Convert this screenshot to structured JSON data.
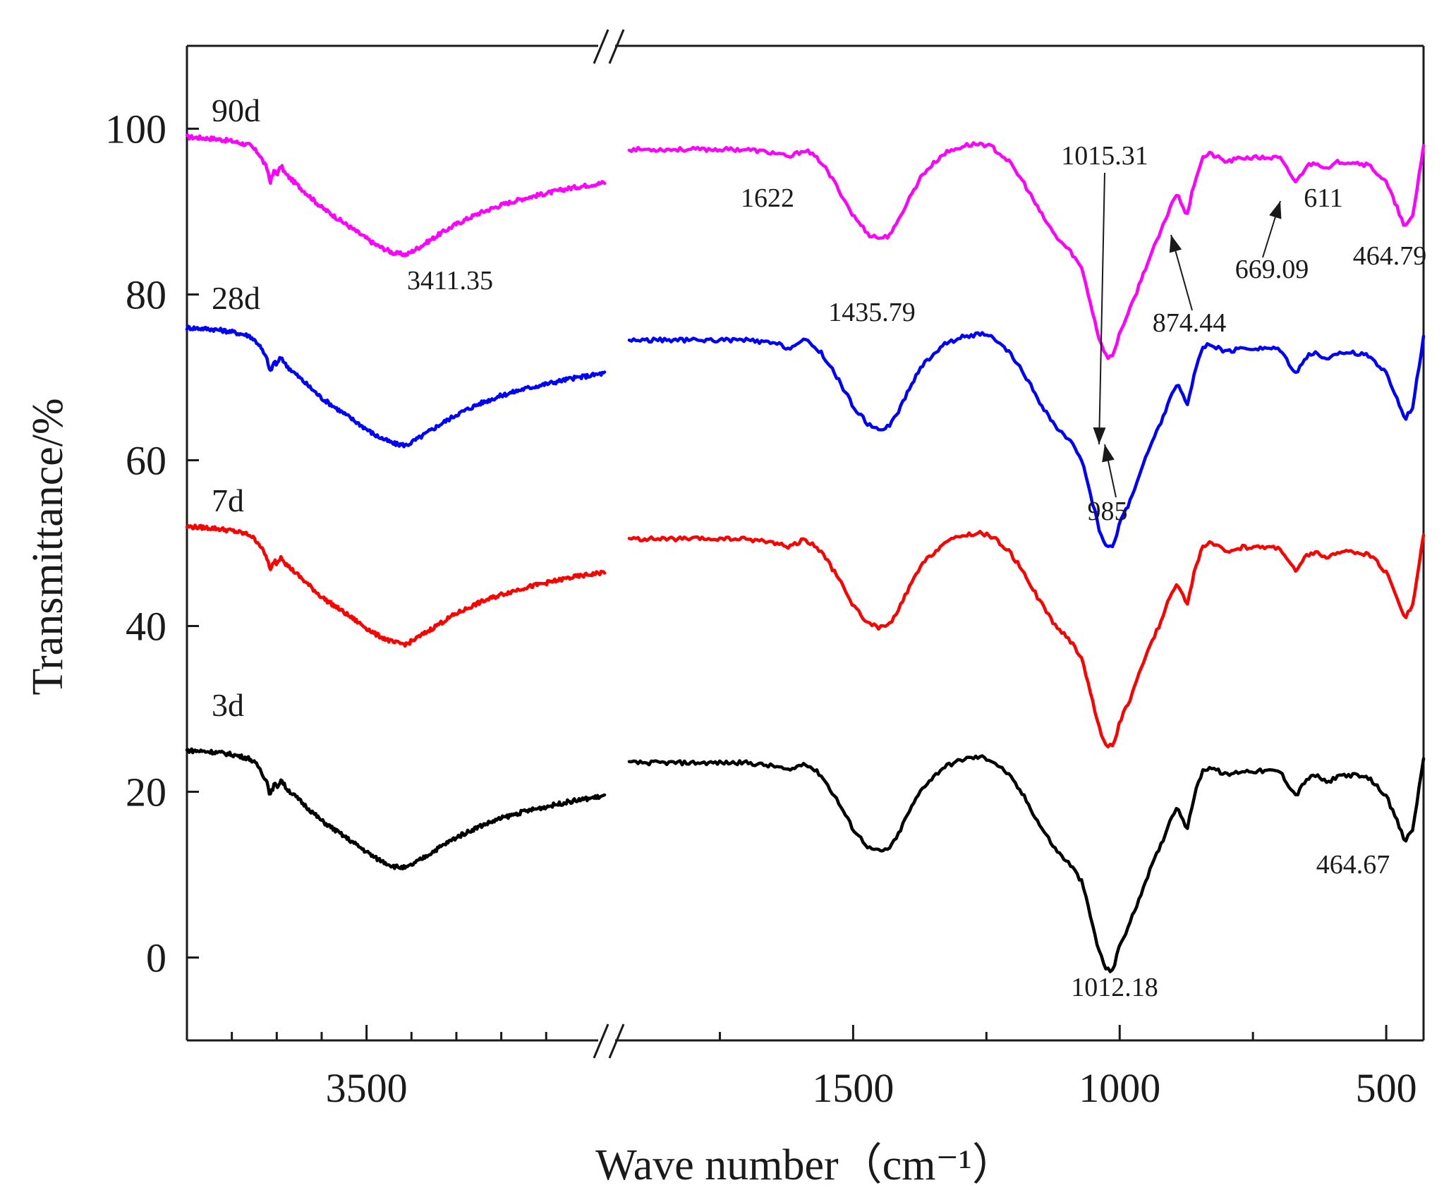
{
  "chart_data": {
    "type": "line",
    "xlabel": "Wave number（cm⁻¹）",
    "ylabel": "Transmittance/%",
    "ylim": [
      -10,
      110
    ],
    "yticks": [
      "0",
      "20",
      "40",
      "60",
      "80",
      "100"
    ],
    "ytick_values": [
      0,
      20,
      40,
      60,
      80,
      100
    ],
    "x_segments": [
      {
        "xlim": [
          3900,
          2970
        ],
        "ticks": [
          "3500"
        ],
        "tick_values": [
          3500
        ],
        "minor_ticks": [
          3800,
          3700,
          3600,
          3400,
          3300,
          3200,
          3100
        ]
      },
      {
        "xlim": [
          1920,
          430
        ],
        "ticks": [
          "1500",
          "1000",
          "500"
        ],
        "tick_values": [
          1500,
          1000,
          500
        ],
        "minor_ticks": [
          1750,
          1250,
          750
        ]
      }
    ],
    "colors": {
      "90d": "#ff00ff",
      "28d": "#0000ff",
      "7d": "#ff0000",
      "3d": "#000000"
    },
    "series": [
      {
        "name": "90d",
        "label": "90d",
        "offset": 73,
        "color": "#ff00ff"
      },
      {
        "name": "28d",
        "label": "28d",
        "offset": 50,
        "color": "#0000ff"
      },
      {
        "name": "7d",
        "label": "7d",
        "offset": 26,
        "color": "#ff0000"
      },
      {
        "name": "3d",
        "label": "3d",
        "offset": -1,
        "color": "#000000"
      }
    ],
    "segment1_shape": {
      "x": [
        3900,
        3840,
        3800,
        3760,
        3740,
        3720,
        3715,
        3705,
        3700,
        3690,
        3680,
        3660,
        3640,
        3620,
        3600,
        3560,
        3520,
        3480,
        3440,
        3411,
        3380,
        3340,
        3300,
        3250,
        3200,
        3150,
        3100,
        3050,
        2970
      ],
      "y": [
        26,
        25.8,
        25.5,
        25,
        24,
        22,
        20.5,
        22,
        21.5,
        22.5,
        21.5,
        20.5,
        19.5,
        18.5,
        17.5,
        16,
        14.5,
        13,
        12,
        11.8,
        12.8,
        14.2,
        15.5,
        16.8,
        17.8,
        18.6,
        19.2,
        19.8,
        20.5
      ]
    },
    "segment2_shape": {
      "x": [
        1920,
        1800,
        1700,
        1640,
        1622,
        1590,
        1560,
        1530,
        1500,
        1470,
        1450,
        1436,
        1420,
        1400,
        1370,
        1330,
        1290,
        1260,
        1240,
        1210,
        1180,
        1150,
        1120,
        1090,
        1070,
        1055,
        1040,
        1025,
        1015,
        1010,
        1000,
        985,
        970,
        950,
        920,
        900,
        890,
        880,
        874,
        860,
        845,
        830,
        800,
        770,
        740,
        700,
        685,
        669,
        650,
        630,
        611,
        590,
        560,
        530,
        500,
        480,
        465,
        450,
        430
      ],
      "y": [
        24.5,
        24.5,
        24.5,
        24,
        23.5,
        24.5,
        23,
        20,
        16.5,
        14.2,
        13.8,
        14,
        15.2,
        18,
        21.5,
        24,
        25,
        25.2,
        24.8,
        23.2,
        20.5,
        17,
        14,
        12,
        10,
        6,
        2,
        -0.5,
        -0.5,
        0,
        2.5,
        4.5,
        7,
        10.5,
        15,
        18.5,
        19,
        17.5,
        16.5,
        20.5,
        23.5,
        24,
        23,
        23.5,
        23.5,
        23.5,
        22,
        20.5,
        22.5,
        23,
        22,
        23,
        23,
        22.5,
        20.5,
        17.5,
        15,
        16.5,
        25
      ]
    },
    "annotations": [
      {
        "text": "3411.35",
        "x": 3411,
        "series": "90d"
      },
      {
        "text": "1622",
        "x": 1622,
        "series": "90d"
      },
      {
        "text": "1435.79",
        "x": 1436,
        "series": "90d"
      },
      {
        "text": "1015.31",
        "x": 1015,
        "series": "90d",
        "arrow": true
      },
      {
        "text": "985",
        "x": 985,
        "series": "90d",
        "arrow": true
      },
      {
        "text": "874.44",
        "x": 874,
        "series": "90d",
        "arrow": true
      },
      {
        "text": "669.09",
        "x": 669,
        "series": "90d",
        "arrow": true
      },
      {
        "text": "611",
        "x": 611,
        "series": "90d"
      },
      {
        "text": "464.79",
        "x": 465,
        "series": "90d"
      },
      {
        "text": "1012.18",
        "x": 1012,
        "series": "3d"
      },
      {
        "text": "464.67",
        "x": 465,
        "series": "3d"
      }
    ]
  }
}
